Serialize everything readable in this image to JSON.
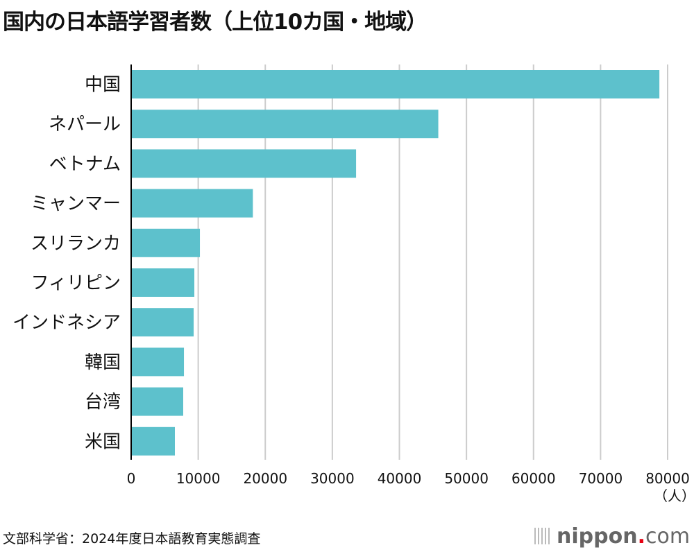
{
  "title": "国内の日本語学習者数（上位10カ国・地域）",
  "source": "文部科学省：2024年度日本語教育実態調査",
  "logo": {
    "main": "nippon",
    "dot": ".",
    "tld": "com"
  },
  "colors": {
    "bar": "#5dc1cc",
    "grid": "#cccccc",
    "axis": "#000000"
  },
  "chart_data": {
    "type": "bar",
    "orientation": "horizontal",
    "title": "国内の日本語学習者数（上位10カ国・地域）",
    "categories": [
      "中国",
      "ネパール",
      "ベトナム",
      "ミャンマー",
      "スリランカ",
      "フィリピン",
      "インドネシア",
      "韓国",
      "台湾",
      "米国"
    ],
    "values": [
      78770,
      45800,
      33540,
      18150,
      10250,
      9420,
      9320,
      7870,
      7760,
      6520
    ],
    "xlim": [
      0,
      80000
    ],
    "xticks": [
      "0",
      "10000",
      "20000",
      "30000",
      "40000",
      "50000",
      "60000",
      "70000",
      "80000"
    ],
    "unit": "（人）",
    "grid": true
  }
}
